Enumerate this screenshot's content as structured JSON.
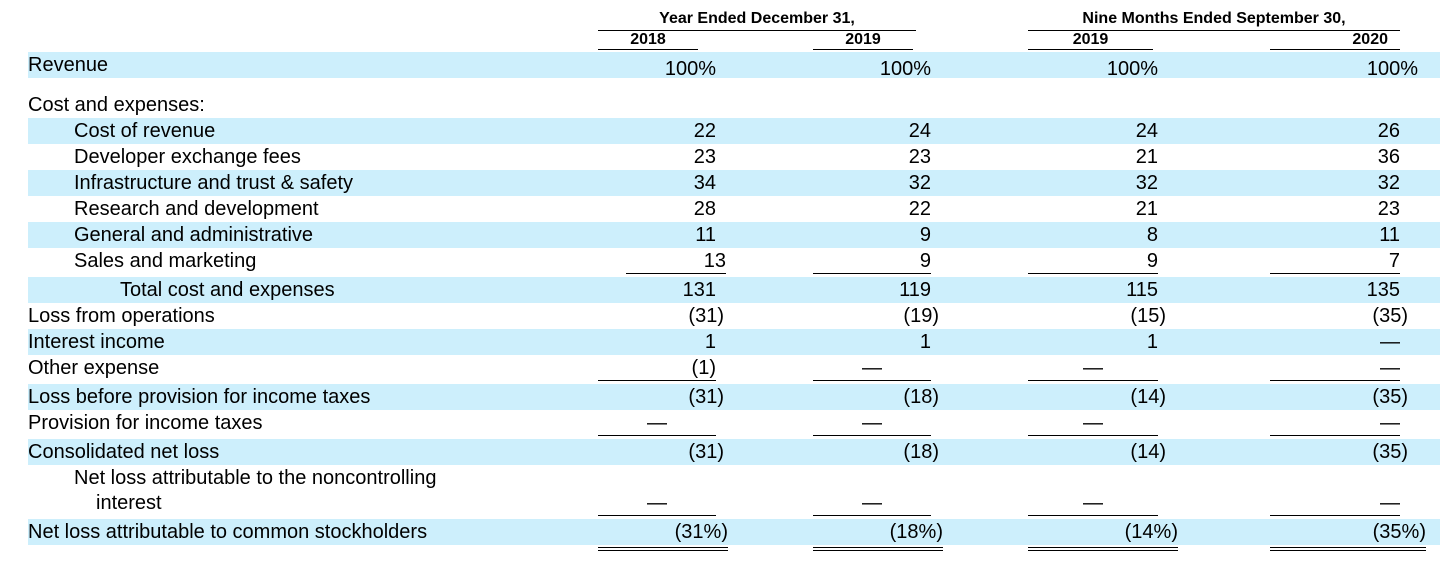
{
  "header": {
    "group_year": "Year Ended December 31,",
    "group_nine": "Nine Months Ended September 30,",
    "years": [
      "2018",
      "2019",
      "2019",
      "2020"
    ]
  },
  "rows": {
    "revenue": {
      "label": "Revenue",
      "values": [
        "100%",
        "100%",
        "100%",
        "100%"
      ]
    },
    "cost_header": {
      "label": "Cost and expenses:"
    },
    "cost_of_revenue": {
      "label": "Cost of revenue",
      "values": [
        "22",
        "24",
        "24",
        "26"
      ]
    },
    "developer_exchange": {
      "label": "Developer exchange fees",
      "values": [
        "23",
        "23",
        "21",
        "36"
      ]
    },
    "infrastructure": {
      "label": "Infrastructure and trust & safety",
      "values": [
        "34",
        "32",
        "32",
        "32"
      ]
    },
    "research": {
      "label": "Research and development",
      "values": [
        "28",
        "22",
        "21",
        "23"
      ]
    },
    "general_admin": {
      "label": "General and administrative",
      "values": [
        "11",
        "9",
        "8",
        "11"
      ]
    },
    "sales_marketing": {
      "label": "Sales and marketing",
      "values": [
        "13",
        "9",
        "9",
        "7"
      ]
    },
    "total_cost": {
      "label": "Total cost and expenses",
      "values": [
        "131",
        "119",
        "115",
        "135"
      ]
    },
    "loss_operations": {
      "label": "Loss from operations",
      "values": [
        "(31)",
        "(19)",
        "(15)",
        "(35)"
      ]
    },
    "interest_income": {
      "label": "Interest income",
      "values": [
        "1",
        "1",
        "1",
        "—"
      ]
    },
    "other_expense": {
      "label": "Other expense",
      "values": [
        "(1)",
        "—",
        "—",
        "—"
      ]
    },
    "loss_before_tax": {
      "label": "Loss before provision for income taxes",
      "values": [
        "(31)",
        "(18)",
        "(14)",
        "(35)"
      ]
    },
    "provision_tax": {
      "label": "Provision for income taxes",
      "values": [
        "—",
        "—",
        "—",
        "—"
      ]
    },
    "consolidated_loss": {
      "label": "Consolidated net loss",
      "values": [
        "(31)",
        "(18)",
        "(14)",
        "(35)"
      ]
    },
    "noncontrolling": {
      "label_line1": "Net loss attributable to the noncontrolling",
      "label_line2": "interest",
      "values": [
        "—",
        "—",
        "—",
        "—"
      ]
    },
    "net_loss_common": {
      "label": "Net loss attributable to common stockholders",
      "values": [
        "(31%)",
        "(18%)",
        "(14%)",
        "(35%)"
      ]
    }
  }
}
